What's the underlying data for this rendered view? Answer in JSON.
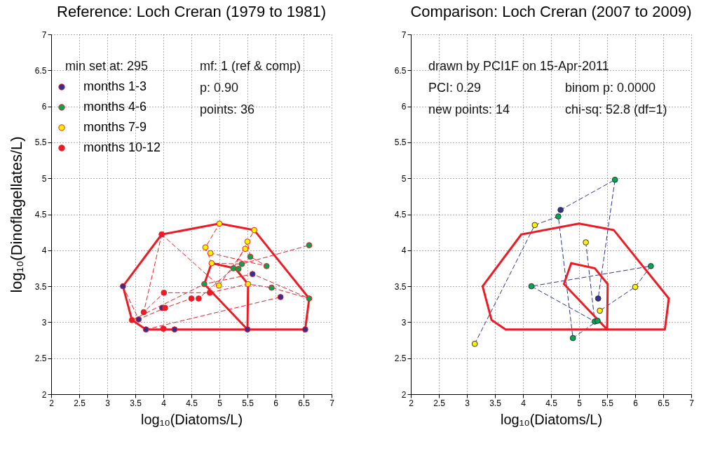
{
  "chart_data": [
    {
      "type": "scatter",
      "title": "Reference: Loch Creran (1979 to 1981)",
      "xlabel": "log₁₀(Diatoms/L)",
      "ylabel": "log₁₀(Dinoflagellates/L)",
      "xlim": [
        2,
        7
      ],
      "ylim": [
        2,
        7
      ],
      "xticks": [
        2,
        2.5,
        3,
        3.5,
        4,
        4.5,
        5,
        5.5,
        6,
        6.5,
        7
      ],
      "yticks": [
        2,
        2.5,
        3,
        3.5,
        4,
        4.5,
        5,
        5.5,
        6,
        6.5,
        7
      ],
      "grid": true,
      "legend": "top left",
      "marker": "circle",
      "annotations": [
        "min set at: 295",
        "mf: 1 (ref & comp)",
        "p: 0.90",
        "points: 36"
      ],
      "series": [
        {
          "name": "months 1-3",
          "type": "scatter",
          "color": "#2e3192",
          "x": [
            3.28,
            3.56,
            3.69,
            3.98,
            4.2,
            5.5,
            5.59,
            6.09,
            6.53
          ],
          "values": [
            3.5,
            3.04,
            2.9,
            3.2,
            2.9,
            2.9,
            3.67,
            3.35,
            2.9
          ]
        },
        {
          "name": "months 4-6",
          "type": "scatter",
          "color": "#00a651",
          "x": [
            4.73,
            5.25,
            5.34,
            5.4,
            5.55,
            5.84,
            5.93,
            6.6,
            6.6
          ],
          "values": [
            3.53,
            3.75,
            3.74,
            3.81,
            3.91,
            3.78,
            3.48,
            4.07,
            3.33
          ]
        },
        {
          "name": "months 7-9",
          "type": "scatter",
          "color": "#fff200",
          "x": [
            5.0,
            5.62,
            5.5,
            5.46,
            4.75,
            4.84,
            4.86,
            4.99,
            5.51
          ],
          "values": [
            4.37,
            4.28,
            4.12,
            4.02,
            4.04,
            3.96,
            3.82,
            3.51,
            3.53
          ]
        },
        {
          "name": "months 10-12",
          "type": "scatter",
          "color": "#ed1c24",
          "x": [
            3.97,
            4.01,
            4.03,
            3.65,
            3.44,
            4.0,
            4.5,
            4.63,
            4.83
          ],
          "values": [
            4.22,
            3.41,
            3.2,
            3.14,
            3.03,
            2.91,
            3.33,
            3.33,
            3.41
          ]
        },
        {
          "type": "line",
          "marker": "none",
          "line_style": "dashed",
          "color": "#ed1c24",
          "x": [
            3.28,
            3.56,
            4.03,
            4.5,
            4.63,
            5.25,
            5.62,
            5.0,
            4.75,
            4.86,
            5.4,
            6.6
          ],
          "values": [
            3.5,
            3.04,
            3.2,
            3.33,
            3.33,
            3.75,
            4.28,
            4.37,
            4.04,
            3.82,
            3.81,
            4.07
          ]
        },
        {
          "type": "line",
          "marker": "none",
          "line_style": "dashed",
          "color": "#ed1c24",
          "x": [
            3.97,
            3.65,
            4.01,
            4.83,
            5.51,
            5.93,
            6.6,
            5.59,
            4.73,
            3.44
          ],
          "values": [
            4.22,
            3.14,
            3.41,
            3.41,
            3.53,
            3.48,
            3.33,
            3.67,
            3.53,
            3.03
          ]
        },
        {
          "type": "line",
          "marker": "none",
          "line_style": "dashed",
          "color": "#ed1c24",
          "x": [
            3.97,
            4.99,
            5.46,
            5.5,
            5.55,
            5.84,
            4.84
          ],
          "values": [
            4.22,
            3.51,
            4.02,
            4.12,
            3.91,
            3.78,
            3.96
          ]
        },
        {
          "type": "line",
          "marker": "none",
          "line_style": "dashed",
          "color": "#ed1c24",
          "x": [
            3.69,
            6.09
          ],
          "values": [
            2.9,
            3.35
          ]
        },
        {
          "type": "line",
          "marker": "none",
          "line_style": "solid",
          "color": "#ed1c24",
          "x": [
            3.28,
            3.97,
            5.0,
            5.62,
            6.6
          ],
          "values": [
            3.5,
            4.22,
            4.37,
            4.28,
            3.33
          ]
        },
        {
          "type": "line",
          "marker": "none",
          "line_style": "solid",
          "color": "#ed1c24",
          "x": [
            6.6,
            6.53,
            3.69,
            3.44,
            3.28
          ],
          "values": [
            3.33,
            2.9,
            2.9,
            3.03,
            3.5
          ]
        },
        {
          "type": "line",
          "marker": "none",
          "line_style": "solid",
          "color": "#ed1c24",
          "x": [
            4.86,
            5.28,
            5.51,
            5.5
          ],
          "values": [
            3.82,
            3.75,
            3.53,
            2.9
          ]
        },
        {
          "type": "line",
          "marker": "none",
          "line_style": "solid",
          "color": "#ed1c24",
          "x": [
            5.5,
            4.73,
            4.86
          ],
          "values": [
            2.9,
            3.53,
            3.82
          ]
        }
      ]
    },
    {
      "type": "scatter",
      "title": "Comparison: Loch Creran (2007 to 2009)",
      "xlabel": "log₁₀(Diatoms/L)",
      "xlim": [
        2,
        7
      ],
      "ylim": [
        2,
        7
      ],
      "xticks": [
        2,
        2.5,
        3,
        3.5,
        4,
        4.5,
        5,
        5.5,
        6,
        6.5,
        7
      ],
      "yticks": [
        2,
        2.5,
        3,
        3.5,
        4,
        4.5,
        5,
        5.5,
        6,
        6.5,
        7
      ],
      "grid": true,
      "marker": "circle",
      "annotations": [
        "drawn by PCI1F on 15-Apr-2011",
        "PCI: 0.29",
        "binom p: 0.0000",
        "new points: 14",
        "chi-sq: 52.8 (df=1)"
      ],
      "series": [
        {
          "type": "scatter",
          "color": "#2e3192",
          "x": [
            4.67,
            5.34
          ],
          "values": [
            4.56,
            3.33
          ]
        },
        {
          "type": "scatter",
          "color": "#00a651",
          "x": [
            5.64,
            4.63,
            4.15,
            6.28,
            5.28,
            5.33,
            4.89
          ],
          "values": [
            4.98,
            4.47,
            3.5,
            3.78,
            3.01,
            3.02,
            2.78
          ]
        },
        {
          "type": "scatter",
          "color": "#fff200",
          "x": [
            4.21,
            5.12,
            6.0,
            5.37,
            3.14
          ],
          "values": [
            4.35,
            4.11,
            3.49,
            3.16,
            2.7
          ]
        },
        {
          "type": "line",
          "marker": "none",
          "line_style": "dashed",
          "color": "#2e3192",
          "x": [
            3.14,
            4.21,
            4.63,
            4.89,
            5.33
          ],
          "values": [
            2.7,
            4.35,
            4.47,
            2.78,
            3.02
          ]
        },
        {
          "type": "line",
          "marker": "none",
          "line_style": "dashed",
          "color": "#2e3192",
          "x": [
            4.67,
            5.64,
            5.34
          ],
          "values": [
            4.56,
            4.98,
            3.33
          ]
        },
        {
          "type": "line",
          "marker": "none",
          "line_style": "dashed",
          "color": "#2e3192",
          "x": [
            5.12,
            5.28,
            4.15,
            6.28,
            6.0,
            5.37
          ],
          "values": [
            4.11,
            3.01,
            3.5,
            3.78,
            3.49,
            3.16
          ]
        },
        {
          "type": "line",
          "marker": "none",
          "line_style": "solid",
          "color": "#ed1c24",
          "x": [
            3.28,
            3.97,
            5.0,
            5.62,
            6.6
          ],
          "values": [
            3.5,
            4.22,
            4.37,
            4.28,
            3.33
          ]
        },
        {
          "type": "line",
          "marker": "none",
          "line_style": "solid",
          "color": "#ed1c24",
          "x": [
            6.6,
            6.53,
            3.69,
            3.44,
            3.28
          ],
          "values": [
            3.33,
            2.9,
            2.9,
            3.03,
            3.5
          ]
        },
        {
          "type": "line",
          "marker": "none",
          "line_style": "solid",
          "color": "#ed1c24",
          "x": [
            4.86,
            5.28,
            5.51,
            5.5
          ],
          "values": [
            3.82,
            3.75,
            3.53,
            2.9
          ]
        },
        {
          "type": "line",
          "marker": "none",
          "line_style": "solid",
          "color": "#ed1c24",
          "x": [
            5.5,
            4.73,
            4.86
          ],
          "values": [
            2.9,
            3.53,
            3.82
          ]
        }
      ]
    }
  ]
}
